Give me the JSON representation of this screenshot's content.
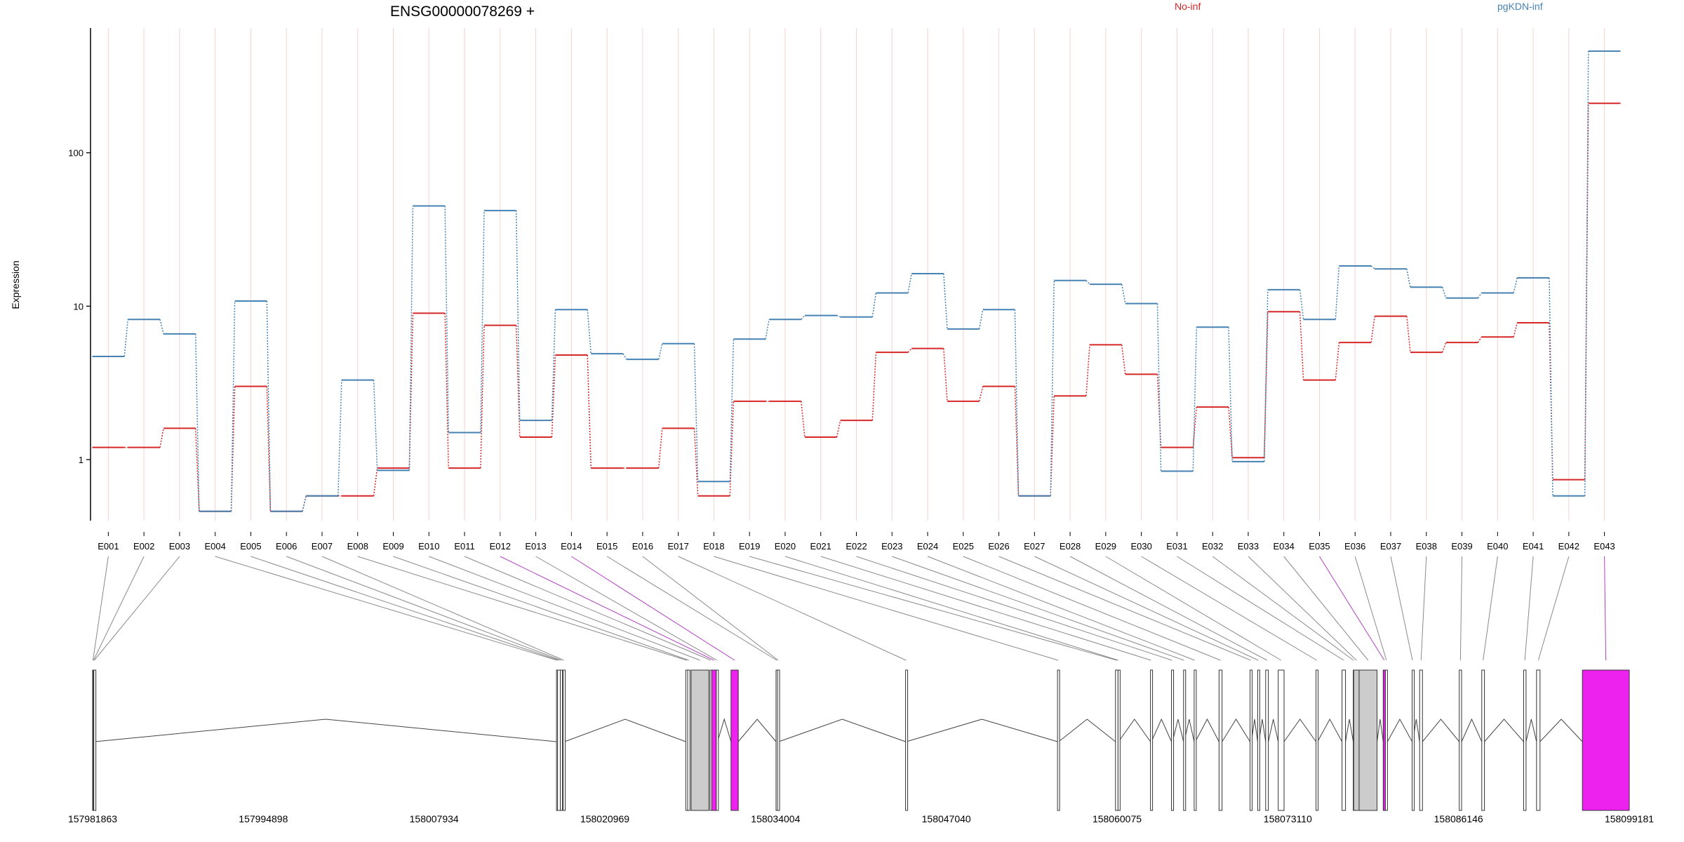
{
  "chart_data": {
    "type": "line",
    "title": "ENSG00000078269 +",
    "ylabel": "Expression",
    "yscale": "log",
    "ylim": [
      0.4,
      650
    ],
    "yticks": [
      1,
      10,
      100
    ],
    "legend_placement": "top",
    "categories": [
      "E001",
      "E002",
      "E003",
      "E004",
      "E005",
      "E006",
      "E007",
      "E008",
      "E009",
      "E010",
      "E011",
      "E012",
      "E013",
      "E014",
      "E015",
      "E016",
      "E017",
      "E018",
      "E019",
      "E020",
      "E021",
      "E022",
      "E023",
      "E024",
      "E025",
      "E026",
      "E027",
      "E028",
      "E029",
      "E030",
      "E031",
      "E032",
      "E033",
      "E034",
      "E035",
      "E036",
      "E037",
      "E038",
      "E039",
      "E040",
      "E041",
      "E042",
      "E043"
    ],
    "series": [
      {
        "name": "No-inf",
        "color": "#d62728",
        "values": [
          1.2,
          1.2,
          1.6,
          0.46,
          3.0,
          0.46,
          0.58,
          0.58,
          0.88,
          9.0,
          0.88,
          7.5,
          1.4,
          4.8,
          0.88,
          0.88,
          1.6,
          0.58,
          2.4,
          2.4,
          1.4,
          1.8,
          5.0,
          5.3,
          2.4,
          3.0,
          0.58,
          2.6,
          5.6,
          3.6,
          1.2,
          2.2,
          1.03,
          9.2,
          3.3,
          5.8,
          8.6,
          5.0,
          5.8,
          6.3,
          7.8,
          0.74,
          210
        ]
      },
      {
        "name": "pgKDN-inf",
        "color": "#4682b4",
        "values": [
          4.7,
          8.2,
          6.6,
          0.46,
          10.8,
          0.46,
          0.58,
          3.3,
          0.85,
          45,
          1.5,
          42,
          1.8,
          9.5,
          4.9,
          4.5,
          5.7,
          0.72,
          6.1,
          8.2,
          8.7,
          8.5,
          12.2,
          16.3,
          7.1,
          9.5,
          0.58,
          14.7,
          13.9,
          10.4,
          0.84,
          7.3,
          0.97,
          12.8,
          8.2,
          18.3,
          17.5,
          13.3,
          11.3,
          12.2,
          15.3,
          0.58,
          460
        ]
      }
    ],
    "gene_model": {
      "coordinate_ticks": [
        "157981863",
        "157994898",
        "158007934",
        "158020969",
        "158034004",
        "158047040",
        "158060075",
        "158073110",
        "158086146",
        "158099181"
      ],
      "range": [
        157981863,
        158099181
      ],
      "highlight_color": "#ee22ee",
      "box_color": "#cccccc",
      "exons": [
        {
          "id": "E001",
          "start": 157981863,
          "end": 157981914
        },
        {
          "id": "E002",
          "start": 157981914,
          "end": 157981952
        },
        {
          "id": "E003",
          "start": 157981952,
          "end": 157982021
        },
        {
          "id": "E004",
          "start": 158017278,
          "end": 158017359
        },
        {
          "id": "E005",
          "start": 158017359,
          "end": 158017571
        },
        {
          "id": "E006",
          "start": 158017571,
          "end": 158017701
        },
        {
          "id": "E007",
          "start": 158017786,
          "end": 158017897
        },
        {
          "id": "E008",
          "start": 158027147,
          "end": 158027291
        },
        {
          "id": "E009",
          "start": 158027291,
          "end": 158027468
        },
        {
          "id": "E010",
          "start": 158027558,
          "end": 158028912,
          "shade": "box"
        },
        {
          "id": "E011",
          "start": 158029001,
          "end": 158029124
        },
        {
          "id": "E012",
          "start": 158029124,
          "end": 158029479,
          "shade": "highlight"
        },
        {
          "id": "E013",
          "start": 158029479,
          "end": 158029569
        },
        {
          "id": "E014",
          "start": 158030602,
          "end": 158031157,
          "shade": "highlight"
        },
        {
          "id": "E015",
          "start": 158034039,
          "end": 158034151
        },
        {
          "id": "E016",
          "start": 158034151,
          "end": 158034253
        },
        {
          "id": "E017",
          "start": 158043929,
          "end": 158043988
        },
        {
          "id": "E018",
          "start": 158055529,
          "end": 158055620
        },
        {
          "id": "E019",
          "start": 158059955,
          "end": 158060149
        },
        {
          "id": "E020",
          "start": 158060149,
          "end": 158060189
        },
        {
          "id": "E021",
          "start": 158062625,
          "end": 158062697
        },
        {
          "id": "E022",
          "start": 158064230,
          "end": 158064308
        },
        {
          "id": "E023",
          "start": 158065152,
          "end": 158065204
        },
        {
          "id": "E024",
          "start": 158065962,
          "end": 158066053
        },
        {
          "id": "E025",
          "start": 158067861,
          "end": 158068092
        },
        {
          "id": "E026",
          "start": 158070230,
          "end": 158070333
        },
        {
          "id": "E027",
          "start": 158070810,
          "end": 158070902
        },
        {
          "id": "E028",
          "start": 158071420,
          "end": 158071625
        },
        {
          "id": "E029",
          "start": 158072380,
          "end": 158072825
        },
        {
          "id": "E030",
          "start": 158075265,
          "end": 158075380
        },
        {
          "id": "E031",
          "start": 158077250,
          "end": 158077515
        },
        {
          "id": "E032",
          "start": 158078110,
          "end": 158078145
        },
        {
          "id": "E033",
          "start": 158078145,
          "end": 158078555,
          "shade": "box"
        },
        {
          "id": "E034",
          "start": 158078555,
          "end": 158079925,
          "shade": "box"
        },
        {
          "id": "E035",
          "start": 158080395,
          "end": 158080560,
          "shade": "highlight"
        },
        {
          "id": "E036",
          "start": 158080560,
          "end": 158080720
        },
        {
          "id": "E037",
          "start": 158082605,
          "end": 158082650
        },
        {
          "id": "E038",
          "start": 158083175,
          "end": 158083393
        },
        {
          "id": "E039",
          "start": 158086201,
          "end": 158086380
        },
        {
          "id": "E040",
          "start": 158087920,
          "end": 158088125
        },
        {
          "id": "E041",
          "start": 158091117,
          "end": 158091300
        },
        {
          "id": "E042",
          "start": 158092102,
          "end": 158092367
        },
        {
          "id": "E043",
          "start": 158095602,
          "end": 158099181,
          "shade": "highlight"
        }
      ]
    }
  }
}
